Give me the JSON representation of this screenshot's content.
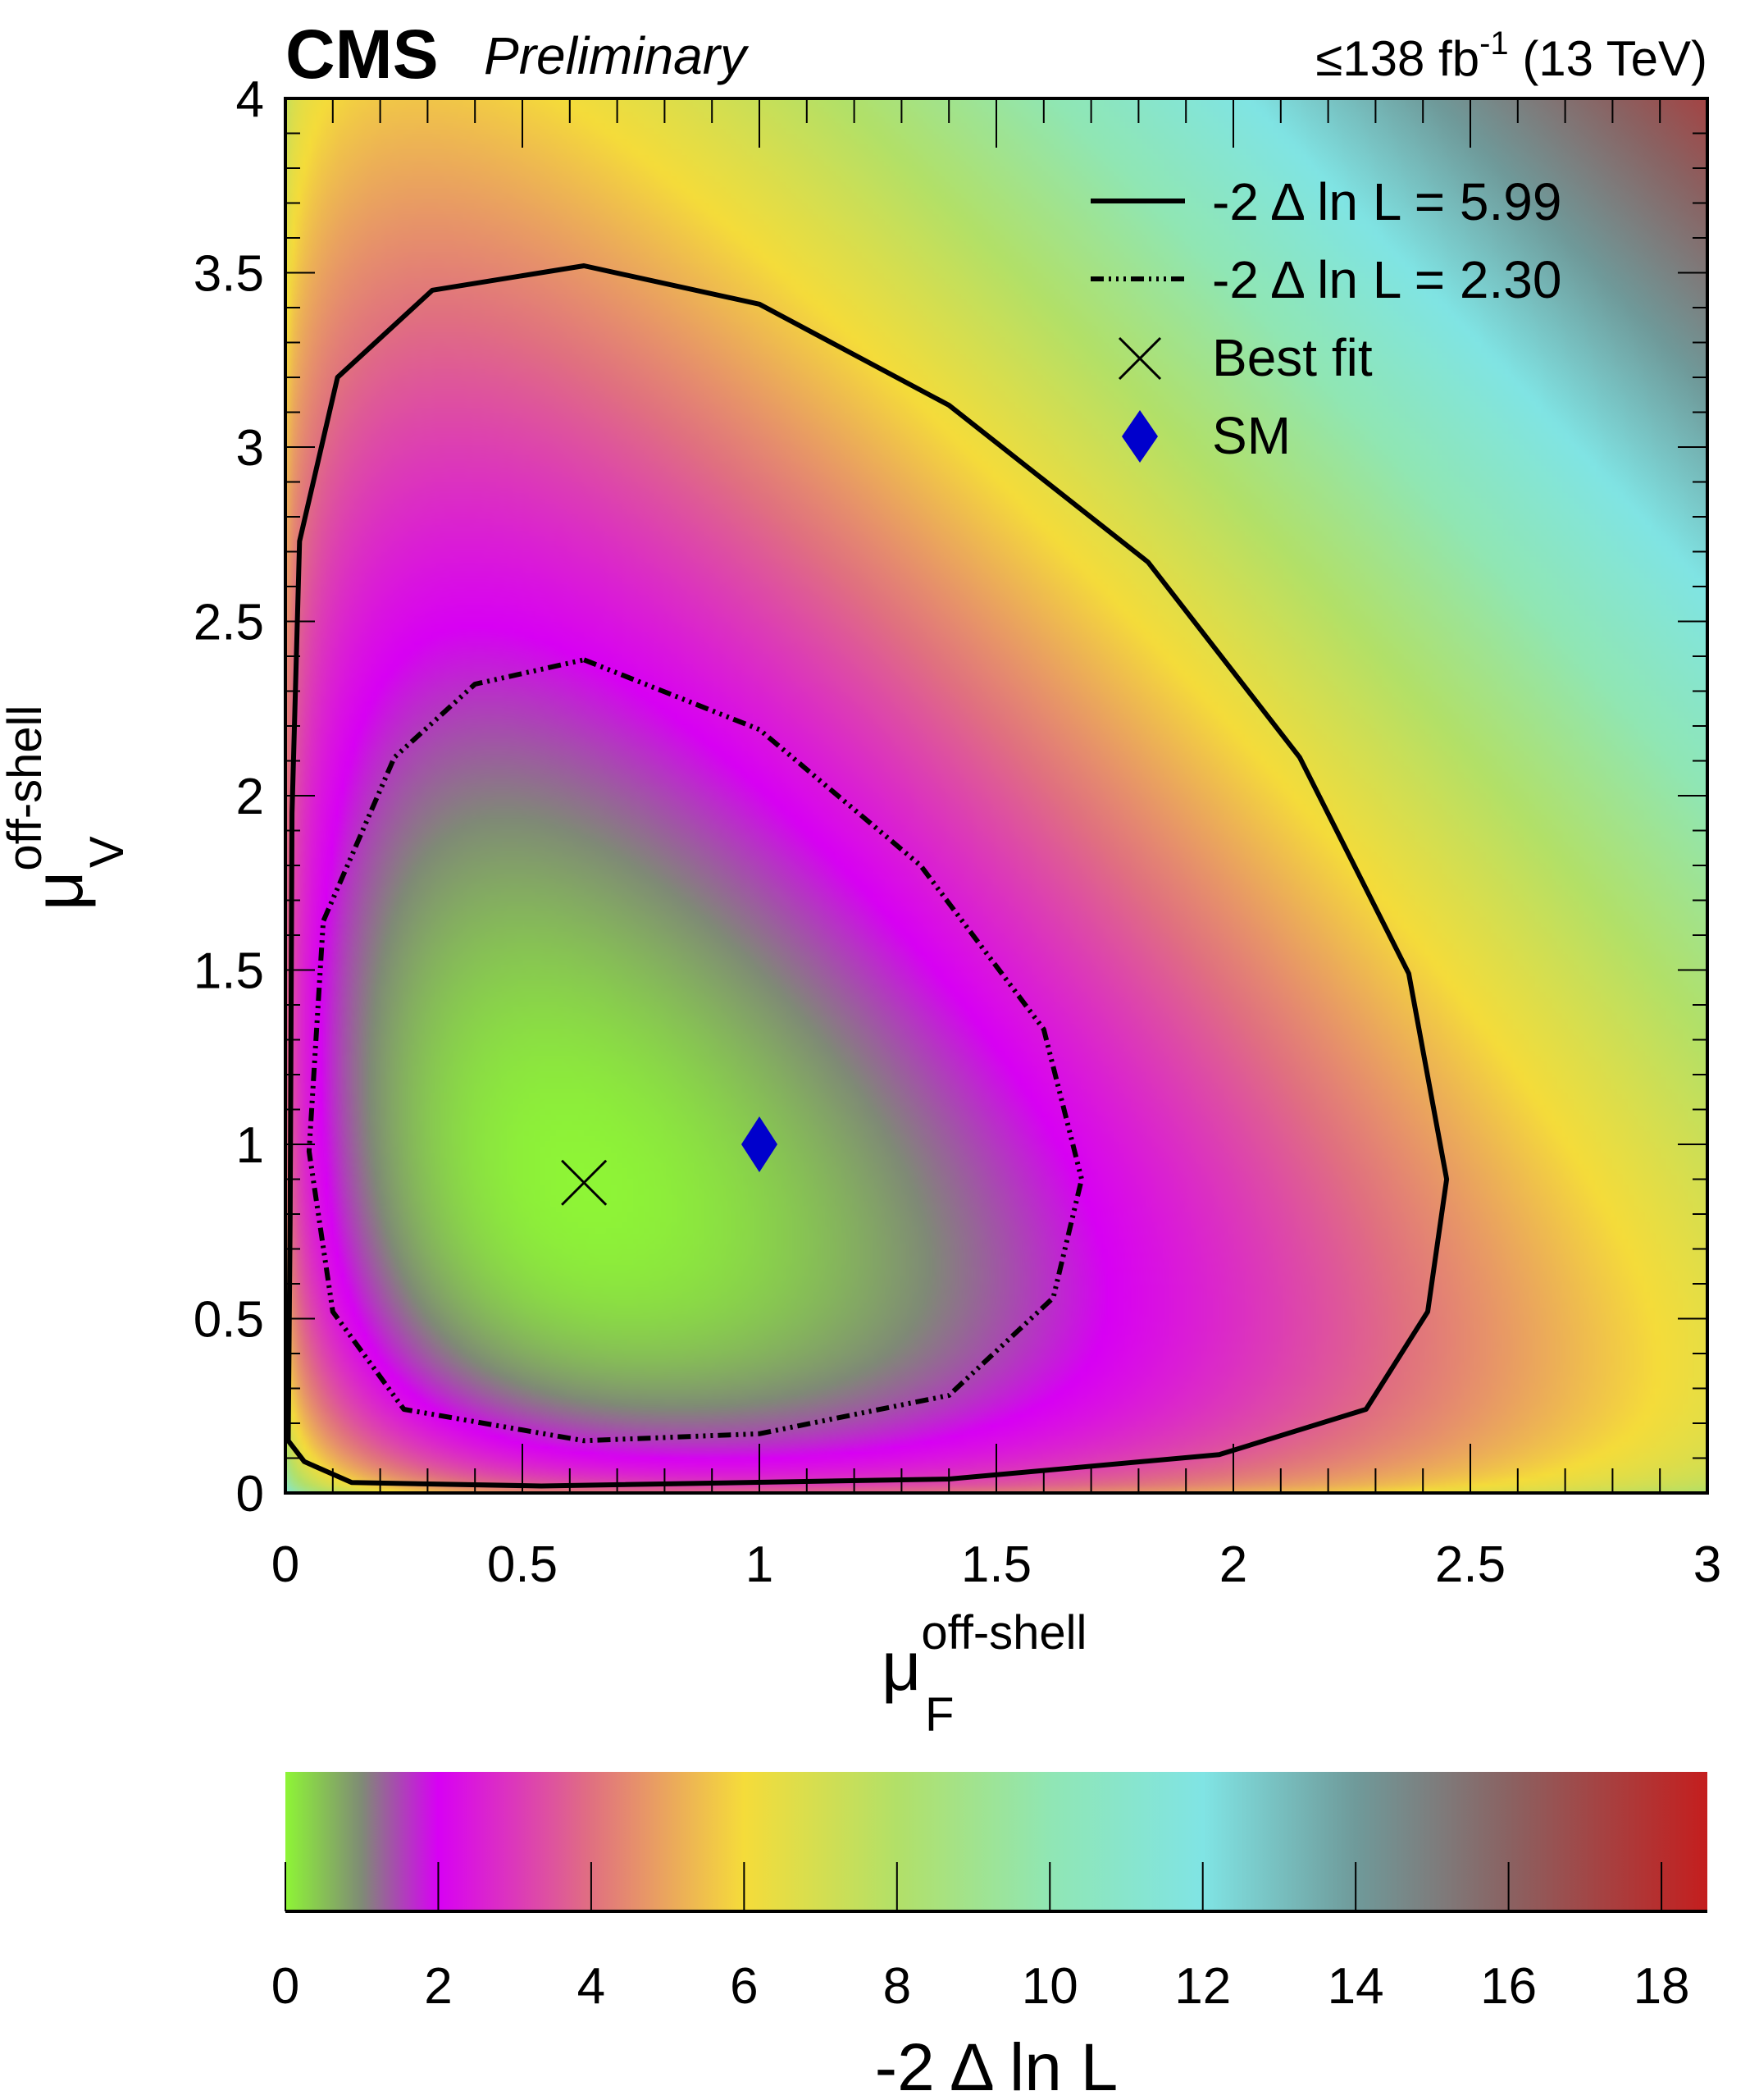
{
  "header": {
    "experiment": "CMS",
    "status": "Preliminary",
    "lumi_prefix": "≤138 fb",
    "lumi_exp": "-1",
    "lumi_suffix": " (13 TeV)"
  },
  "chart_data": {
    "type": "heatmap",
    "title": "",
    "xlabel": {
      "base": "μ",
      "sub": "F",
      "sup": "off-shell"
    },
    "ylabel": {
      "base": "μ",
      "sub": "V",
      "sup": "off-shell"
    },
    "xlim": [
      0,
      3
    ],
    "ylim": [
      0,
      4
    ],
    "xticks": [
      "0",
      "0.5",
      "1",
      "1.5",
      "2",
      "2.5",
      "3"
    ],
    "yticks": [
      "0",
      "0.5",
      "1",
      "1.5",
      "2",
      "2.5",
      "3",
      "3.5",
      "4"
    ],
    "zlabel": "-2 Δ ln L",
    "zlim": [
      0,
      18.6
    ],
    "zticks": [
      "0",
      "2",
      "4",
      "6",
      "8",
      "10",
      "12",
      "14",
      "16",
      "18"
    ],
    "colormap": [
      {
        "z": 0,
        "color": "#8ef536"
      },
      {
        "z": 1,
        "color": "#7f8a76"
      },
      {
        "z": 2,
        "color": "#d800f4"
      },
      {
        "z": 4,
        "color": "#e07080"
      },
      {
        "z": 6,
        "color": "#f5dc3a"
      },
      {
        "z": 8,
        "color": "#b2e068"
      },
      {
        "z": 10,
        "color": "#90e6b4"
      },
      {
        "z": 12,
        "color": "#80e4e4"
      },
      {
        "z": 14,
        "color": "#6f9a9a"
      },
      {
        "z": 16,
        "color": "#8a6262"
      },
      {
        "z": 18.6,
        "color": "#c41e1e"
      }
    ],
    "best_fit": {
      "x": 0.63,
      "y": 0.89
    },
    "sm": {
      "x": 1.0,
      "y": 1.0
    },
    "contours": [
      {
        "level": 5.99,
        "style": "solid",
        "points": [
          [
            0.006,
            0.15
          ],
          [
            0.01,
            0.79
          ],
          [
            0.014,
            1.95
          ],
          [
            0.03,
            2.73
          ],
          [
            0.11,
            3.2
          ],
          [
            0.31,
            3.45
          ],
          [
            0.63,
            3.52
          ],
          [
            1.0,
            3.41
          ],
          [
            1.4,
            3.12
          ],
          [
            1.82,
            2.67
          ],
          [
            2.14,
            2.11
          ],
          [
            2.37,
            1.49
          ],
          [
            2.45,
            0.9
          ],
          [
            2.41,
            0.52
          ],
          [
            2.28,
            0.24
          ],
          [
            1.97,
            0.11
          ],
          [
            1.4,
            0.04
          ],
          [
            0.54,
            0.02
          ],
          [
            0.14,
            0.03
          ],
          [
            0.04,
            0.09
          ]
        ]
      },
      {
        "level": 2.3,
        "style": "dash-dot",
        "points": [
          [
            0.63,
            2.39
          ],
          [
            1.0,
            2.19
          ],
          [
            1.34,
            1.8
          ],
          [
            1.6,
            1.33
          ],
          [
            1.68,
            0.9
          ],
          [
            1.62,
            0.56
          ],
          [
            1.4,
            0.28
          ],
          [
            1.0,
            0.17
          ],
          [
            0.63,
            0.15
          ],
          [
            0.25,
            0.24
          ],
          [
            0.1,
            0.52
          ],
          [
            0.05,
            0.98
          ],
          [
            0.08,
            1.64
          ],
          [
            0.23,
            2.11
          ],
          [
            0.4,
            2.32
          ]
        ]
      }
    ],
    "legend": {
      "placement": "top-right",
      "entries": [
        {
          "label": "-2 Δ ln L = 5.99",
          "marker": "solid-line"
        },
        {
          "label": "-2 Δ ln L = 2.30",
          "marker": "dash-dot-line"
        },
        {
          "label": "Best fit",
          "marker": "cross"
        },
        {
          "label": "SM",
          "marker": "diamond",
          "color": "#0000cc"
        }
      ]
    }
  }
}
